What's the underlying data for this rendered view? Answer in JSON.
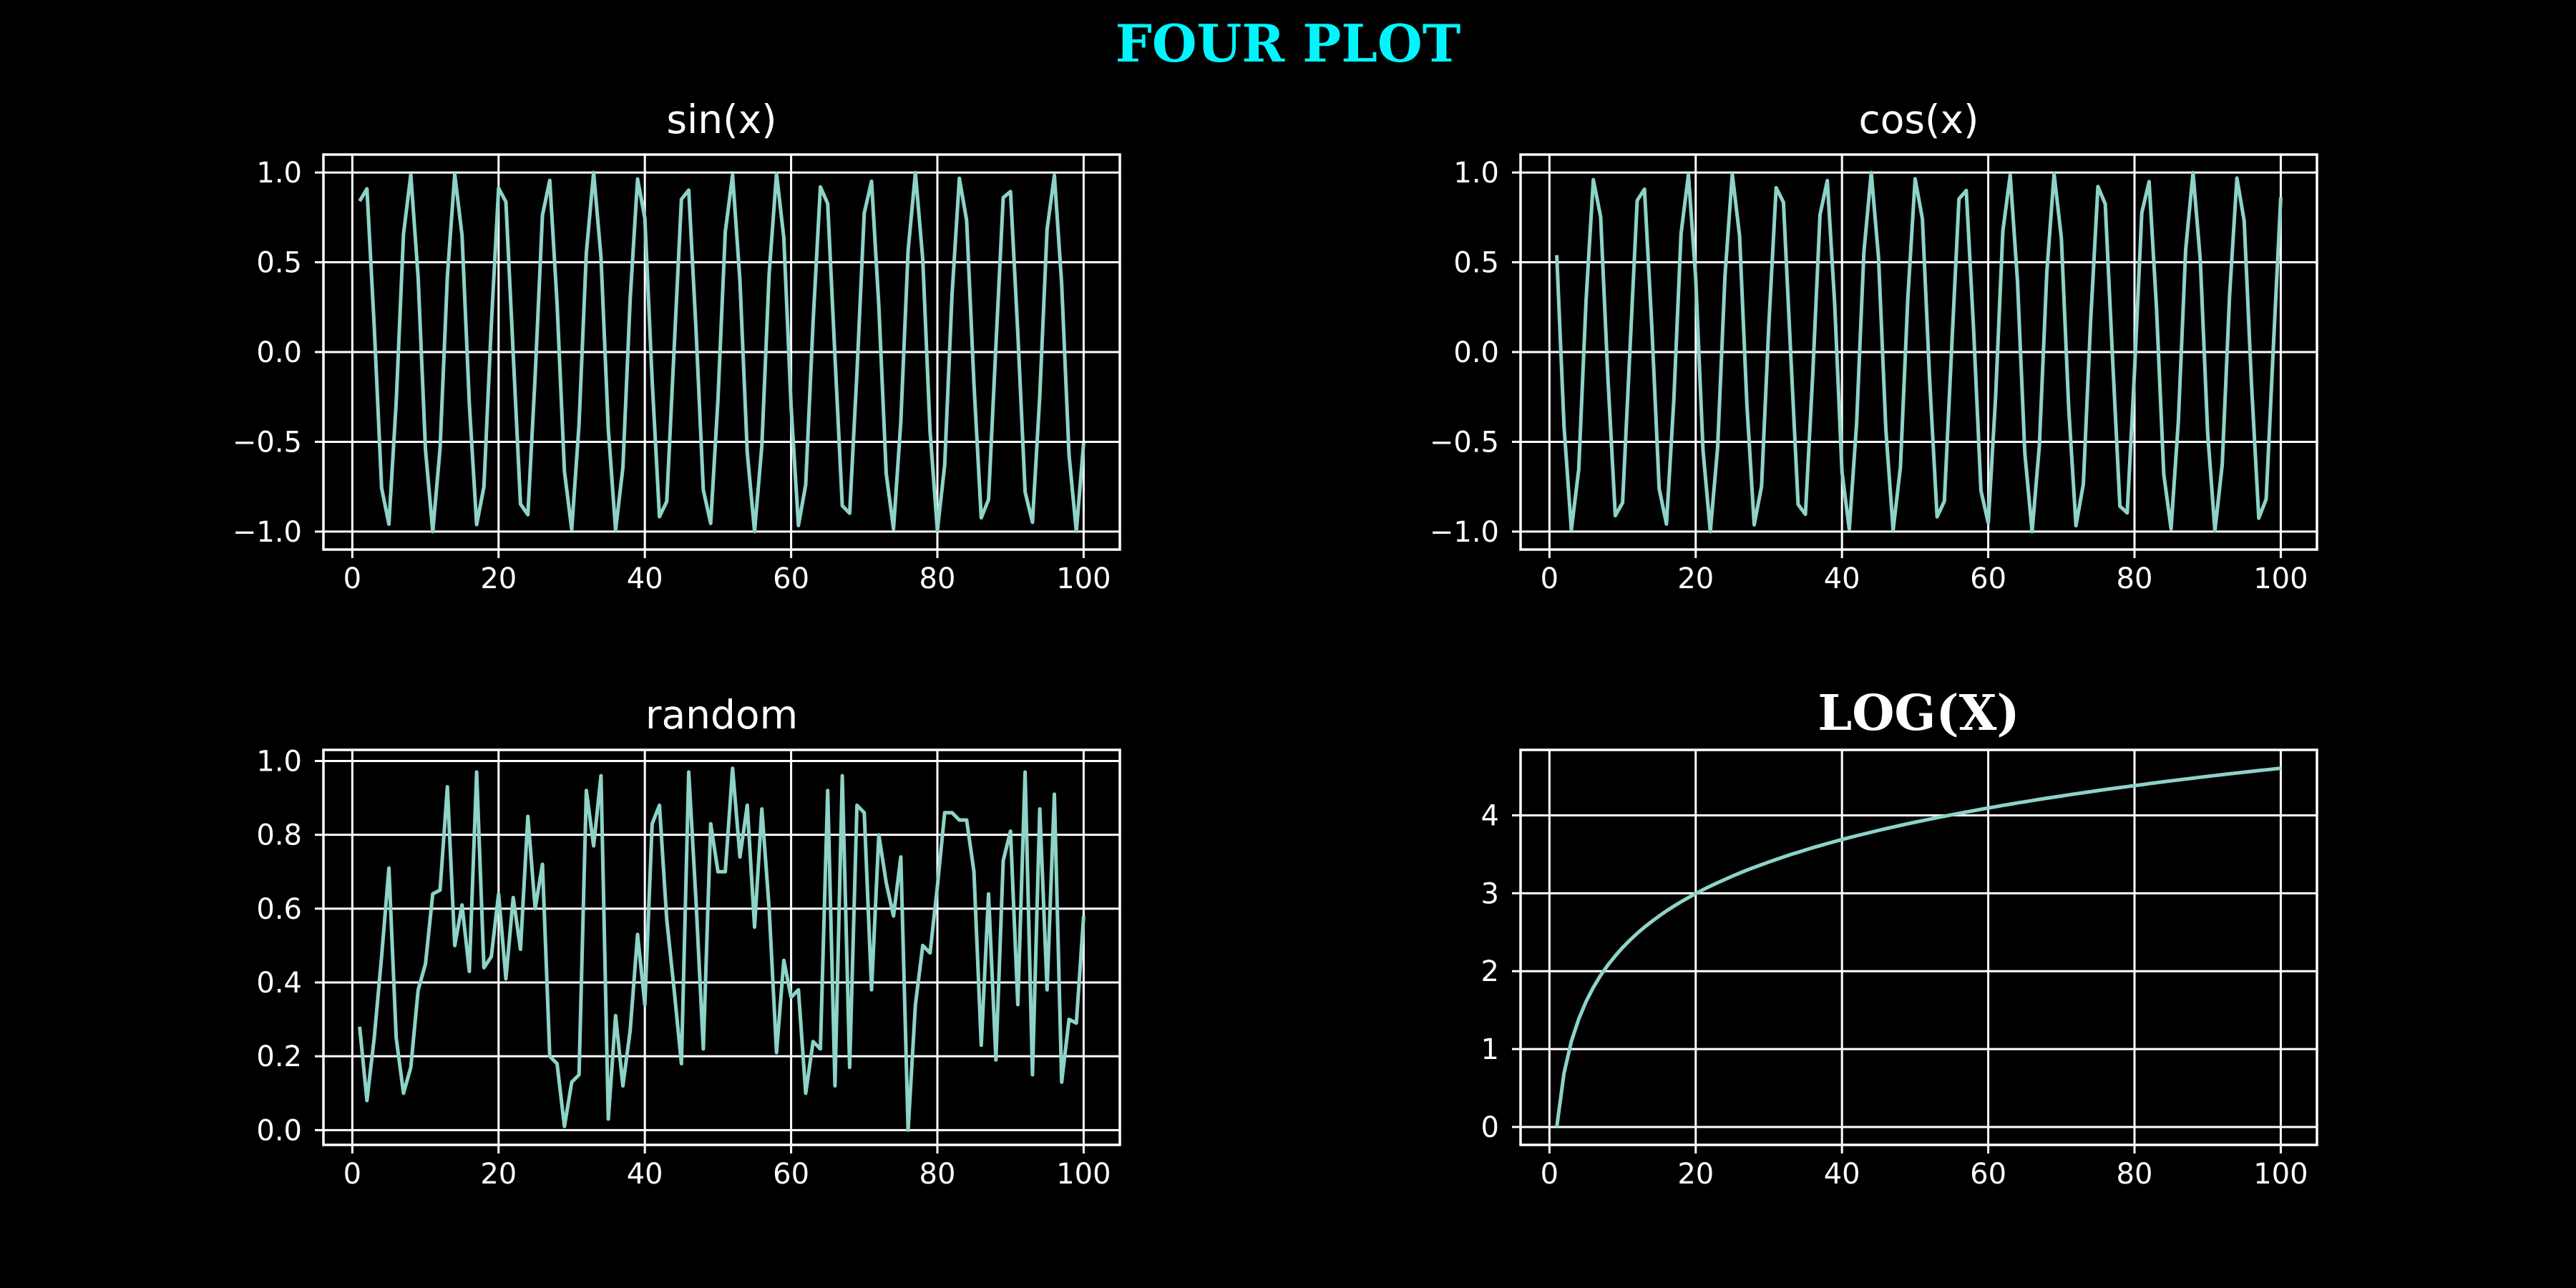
{
  "figure": {
    "title": "FOUR PLOT",
    "title_color": "#00f5ff",
    "background": "#000000",
    "line_color": "#8dd3c7",
    "axis_color": "#ffffff"
  },
  "chart_data": [
    {
      "id": "sin",
      "type": "line",
      "title": "sin(x)",
      "xlabel": "",
      "ylabel": "",
      "xlim": [
        -3.95,
        104.95
      ],
      "ylim": [
        -1.1,
        1.1
      ],
      "xticks": [
        0,
        20,
        40,
        60,
        80,
        100
      ],
      "yticks": [
        -1.0,
        -0.5,
        0.0,
        0.5,
        1.0
      ],
      "xtick_labels": [
        "0",
        "20",
        "40",
        "60",
        "80",
        "100"
      ],
      "ytick_labels": [
        "−1.0",
        "−0.5",
        "0.0",
        "0.5",
        "1.0"
      ],
      "grid": true,
      "series": [
        {
          "x": [
            1,
            2,
            3,
            4,
            5,
            6,
            7,
            8,
            9,
            10,
            11,
            12,
            13,
            14,
            15,
            16,
            17,
            18,
            19,
            20,
            21,
            22,
            23,
            24,
            25,
            26,
            27,
            28,
            29,
            30,
            31,
            32,
            33,
            34,
            35,
            36,
            37,
            38,
            39,
            40,
            41,
            42,
            43,
            44,
            45,
            46,
            47,
            48,
            49,
            50,
            51,
            52,
            53,
            54,
            55,
            56,
            57,
            58,
            59,
            60,
            61,
            62,
            63,
            64,
            65,
            66,
            67,
            68,
            69,
            70,
            71,
            72,
            73,
            74,
            75,
            76,
            77,
            78,
            79,
            80,
            81,
            82,
            83,
            84,
            85,
            86,
            87,
            88,
            89,
            90,
            91,
            92,
            93,
            94,
            95,
            96,
            97,
            98,
            99,
            100
          ],
          "y": [
            0.841,
            0.909,
            0.141,
            -0.757,
            -0.959,
            -0.279,
            0.657,
            0.989,
            0.412,
            -0.544,
            -1.0,
            -0.537,
            0.42,
            0.991,
            0.65,
            -0.288,
            -0.961,
            -0.751,
            0.15,
            0.913,
            0.837,
            -0.009,
            -0.846,
            -0.906,
            -0.132,
            0.763,
            0.956,
            0.271,
            -0.664,
            -0.988,
            -0.404,
            0.551,
            1.0,
            0.529,
            -0.428,
            -0.992,
            -0.644,
            0.296,
            0.964,
            0.745,
            -0.159,
            -0.917,
            -0.832,
            0.018,
            0.851,
            0.902,
            0.124,
            -0.768,
            -0.954,
            -0.262,
            0.67,
            0.987,
            0.396,
            -0.559,
            -1.0,
            -0.522,
            0.436,
            0.993,
            0.637,
            -0.305,
            -0.966,
            -0.739,
            0.167,
            0.92,
            0.827,
            -0.027,
            -0.856,
            -0.898,
            -0.115,
            0.774,
            0.951,
            0.254,
            -0.677,
            -0.985,
            -0.388,
            0.566,
            0.999,
            0.514,
            -0.444,
            -0.994,
            -0.63,
            0.313,
            0.968,
            0.733,
            -0.176,
            -0.923,
            -0.822,
            0.035,
            0.86,
            0.894,
            0.106,
            -0.779,
            -0.948,
            -0.245,
            0.683,
            0.984,
            0.38,
            -0.574,
            -0.999,
            -0.506
          ]
        }
      ]
    },
    {
      "id": "cos",
      "type": "line",
      "title": "cos(x)",
      "xlabel": "",
      "ylabel": "",
      "xlim": [
        -3.95,
        104.95
      ],
      "ylim": [
        -1.1,
        1.1
      ],
      "xticks": [
        0,
        20,
        40,
        60,
        80,
        100
      ],
      "yticks": [
        -1.0,
        -0.5,
        0.0,
        0.5,
        1.0
      ],
      "xtick_labels": [
        "0",
        "20",
        "40",
        "60",
        "80",
        "100"
      ],
      "ytick_labels": [
        "−1.0",
        "−0.5",
        "0.0",
        "0.5",
        "1.0"
      ],
      "grid": true,
      "series": [
        {
          "x": [
            1,
            2,
            3,
            4,
            5,
            6,
            7,
            8,
            9,
            10,
            11,
            12,
            13,
            14,
            15,
            16,
            17,
            18,
            19,
            20,
            21,
            22,
            23,
            24,
            25,
            26,
            27,
            28,
            29,
            30,
            31,
            32,
            33,
            34,
            35,
            36,
            37,
            38,
            39,
            40,
            41,
            42,
            43,
            44,
            45,
            46,
            47,
            48,
            49,
            50,
            51,
            52,
            53,
            54,
            55,
            56,
            57,
            58,
            59,
            60,
            61,
            62,
            63,
            64,
            65,
            66,
            67,
            68,
            69,
            70,
            71,
            72,
            73,
            74,
            75,
            76,
            77,
            78,
            79,
            80,
            81,
            82,
            83,
            84,
            85,
            86,
            87,
            88,
            89,
            90,
            91,
            92,
            93,
            94,
            95,
            96,
            97,
            98,
            99,
            100
          ],
          "y": [
            0.54,
            -0.416,
            -0.99,
            -0.654,
            0.284,
            0.96,
            0.754,
            -0.146,
            -0.911,
            -0.839,
            0.004,
            0.844,
            0.907,
            0.137,
            -0.76,
            -0.958,
            -0.275,
            0.66,
            0.989,
            0.408,
            -0.548,
            -1.0,
            -0.533,
            0.424,
            0.991,
            0.647,
            -0.292,
            -0.962,
            -0.748,
            0.154,
            0.915,
            0.834,
            -0.013,
            -0.849,
            -0.904,
            -0.128,
            0.765,
            0.955,
            0.267,
            -0.667,
            -0.987,
            -0.4,
            0.555,
            1.0,
            0.525,
            -0.432,
            -0.992,
            -0.64,
            0.3,
            0.965,
            0.742,
            -0.162,
            -0.918,
            -0.83,
            0.022,
            0.853,
            0.9,
            0.12,
            -0.771,
            -0.952,
            -0.258,
            0.674,
            0.986,
            0.392,
            -0.562,
            -1.0,
            -0.518,
            0.44,
            0.993,
            0.634,
            -0.309,
            -0.967,
            -0.736,
            0.172,
            0.922,
            0.825,
            -0.031,
            -0.858,
            -0.896,
            -0.11,
            0.776,
            0.949,
            0.249,
            -0.68,
            -0.984,
            -0.384,
            0.57,
            0.999,
            0.51,
            -0.448,
            -0.995,
            -0.627,
            0.317,
            0.969,
            0.73,
            -0.18,
            -0.925,
            -0.819,
            0.04,
            0.862
          ]
        }
      ]
    },
    {
      "id": "random",
      "type": "line",
      "title": "random",
      "xlabel": "",
      "ylabel": "",
      "xlim": [
        -3.95,
        104.95
      ],
      "ylim": [
        -0.04,
        1.03
      ],
      "xticks": [
        0,
        20,
        40,
        60,
        80,
        100
      ],
      "yticks": [
        0.0,
        0.2,
        0.4,
        0.6,
        0.8,
        1.0
      ],
      "xtick_labels": [
        "0",
        "20",
        "40",
        "60",
        "80",
        "100"
      ],
      "ytick_labels": [
        "0.0",
        "0.2",
        "0.4",
        "0.6",
        "0.8",
        "1.0"
      ],
      "grid": true,
      "series": [
        {
          "x": [
            1,
            2,
            3,
            4,
            5,
            6,
            7,
            8,
            9,
            10,
            11,
            12,
            13,
            14,
            15,
            16,
            17,
            18,
            19,
            20,
            21,
            22,
            23,
            24,
            25,
            26,
            27,
            28,
            29,
            30,
            31,
            32,
            33,
            34,
            35,
            36,
            37,
            38,
            39,
            40,
            41,
            42,
            43,
            44,
            45,
            46,
            47,
            48,
            49,
            50,
            51,
            52,
            53,
            54,
            55,
            56,
            57,
            58,
            59,
            60,
            61,
            62,
            63,
            64,
            65,
            66,
            67,
            68,
            69,
            70,
            71,
            72,
            73,
            74,
            75,
            76,
            77,
            78,
            79,
            80,
            81,
            82,
            83,
            84,
            85,
            86,
            87,
            88,
            89,
            90,
            91,
            92,
            93,
            94,
            95,
            96,
            97,
            98,
            99,
            100
          ],
          "y": [
            0.28,
            0.08,
            0.25,
            0.47,
            0.71,
            0.25,
            0.1,
            0.17,
            0.38,
            0.45,
            0.64,
            0.65,
            0.93,
            0.5,
            0.61,
            0.43,
            0.97,
            0.44,
            0.47,
            0.64,
            0.41,
            0.63,
            0.49,
            0.85,
            0.6,
            0.72,
            0.2,
            0.18,
            0.01,
            0.13,
            0.15,
            0.92,
            0.77,
            0.96,
            0.03,
            0.31,
            0.12,
            0.27,
            0.53,
            0.34,
            0.83,
            0.88,
            0.57,
            0.38,
            0.18,
            0.97,
            0.62,
            0.22,
            0.83,
            0.7,
            0.7,
            0.98,
            0.74,
            0.88,
            0.55,
            0.87,
            0.6,
            0.21,
            0.46,
            0.36,
            0.38,
            0.1,
            0.24,
            0.22,
            0.92,
            0.12,
            0.96,
            0.17,
            0.88,
            0.86,
            0.38,
            0.8,
            0.67,
            0.58,
            0.74,
            0.0,
            0.34,
            0.5,
            0.48,
            0.66,
            0.86,
            0.86,
            0.84,
            0.84,
            0.7,
            0.23,
            0.64,
            0.19,
            0.73,
            0.81,
            0.34,
            0.97,
            0.15,
            0.87,
            0.38,
            0.91,
            0.13,
            0.3,
            0.29,
            0.58
          ]
        }
      ]
    },
    {
      "id": "log",
      "type": "line",
      "title": "LOG(X)",
      "xlabel": "",
      "ylabel": "",
      "xlim": [
        -3.95,
        104.95
      ],
      "ylim": [
        -0.23,
        4.84
      ],
      "xticks": [
        0,
        20,
        40,
        60,
        80,
        100
      ],
      "yticks": [
        0,
        1,
        2,
        3,
        4
      ],
      "xtick_labels": [
        "0",
        "20",
        "40",
        "60",
        "80",
        "100"
      ],
      "ytick_labels": [
        "0",
        "1",
        "2",
        "3",
        "4"
      ],
      "grid": true,
      "series": [
        {
          "x": [
            1,
            2,
            3,
            4,
            5,
            6,
            7,
            8,
            9,
            10,
            11,
            12,
            13,
            14,
            15,
            16,
            17,
            18,
            19,
            20,
            21,
            22,
            23,
            24,
            25,
            26,
            27,
            28,
            29,
            30,
            31,
            32,
            33,
            34,
            35,
            36,
            37,
            38,
            39,
            40,
            41,
            42,
            43,
            44,
            45,
            46,
            47,
            48,
            49,
            50,
            51,
            52,
            53,
            54,
            55,
            56,
            57,
            58,
            59,
            60,
            61,
            62,
            63,
            64,
            65,
            66,
            67,
            68,
            69,
            70,
            71,
            72,
            73,
            74,
            75,
            76,
            77,
            78,
            79,
            80,
            81,
            82,
            83,
            84,
            85,
            86,
            87,
            88,
            89,
            90,
            91,
            92,
            93,
            94,
            95,
            96,
            97,
            98,
            99,
            100
          ],
          "y": [
            0.0,
            0.693,
            1.099,
            1.386,
            1.609,
            1.792,
            1.946,
            2.079,
            2.197,
            2.303,
            2.398,
            2.485,
            2.565,
            2.639,
            2.708,
            2.773,
            2.833,
            2.89,
            2.944,
            2.996,
            3.045,
            3.091,
            3.135,
            3.178,
            3.219,
            3.258,
            3.296,
            3.332,
            3.367,
            3.401,
            3.434,
            3.466,
            3.497,
            3.526,
            3.555,
            3.584,
            3.611,
            3.638,
            3.664,
            3.689,
            3.714,
            3.738,
            3.761,
            3.784,
            3.807,
            3.829,
            3.85,
            3.871,
            3.892,
            3.912,
            3.932,
            3.951,
            3.97,
            3.989,
            4.007,
            4.025,
            4.043,
            4.06,
            4.078,
            4.094,
            4.111,
            4.127,
            4.143,
            4.159,
            4.174,
            4.19,
            4.205,
            4.22,
            4.234,
            4.248,
            4.263,
            4.277,
            4.29,
            4.304,
            4.317,
            4.331,
            4.344,
            4.357,
            4.369,
            4.382,
            4.394,
            4.407,
            4.419,
            4.431,
            4.443,
            4.454,
            4.466,
            4.477,
            4.489,
            4.5,
            4.511,
            4.522,
            4.533,
            4.543,
            4.554,
            4.564,
            4.575,
            4.585,
            4.595,
            4.605
          ]
        }
      ]
    }
  ]
}
